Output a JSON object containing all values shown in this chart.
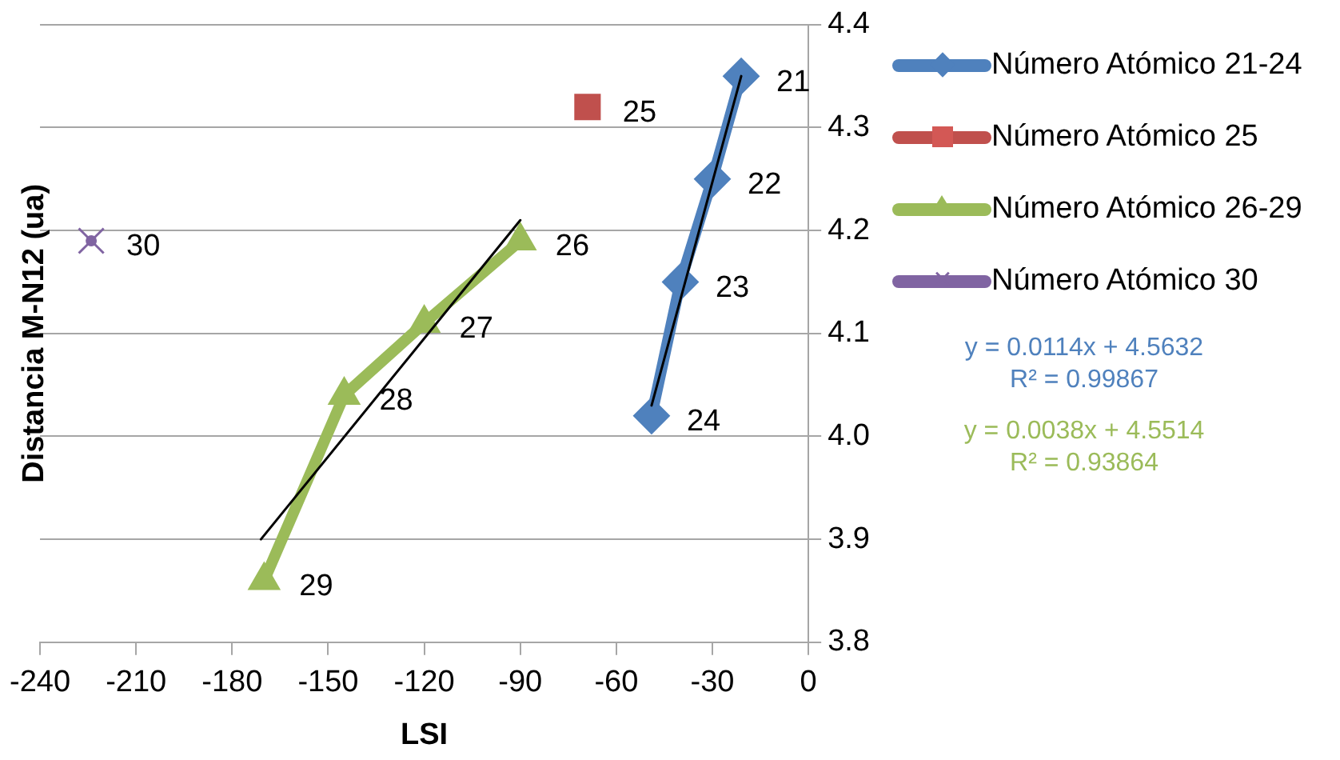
{
  "chart_data": {
    "type": "line",
    "xlabel": "LSI",
    "ylabel": "Distancia M-N12 (ua)",
    "xlim": [
      -240,
      0
    ],
    "xticks": [
      -240,
      -210,
      -180,
      -150,
      -120,
      -90,
      -60,
      -30,
      0
    ],
    "ylim": [
      3.8,
      4.4
    ],
    "yticks": [
      3.8,
      3.9,
      {
        "value": 4,
        "label": "4.0"
      },
      4.1,
      4.2,
      4.3,
      4.4
    ],
    "grid": "y",
    "legend": "right",
    "series": [
      {
        "name": "Número Atómico 21-24",
        "color": "#4f81bd",
        "marker": "diamond",
        "x": [
          -21,
          -30,
          -40,
          -49
        ],
        "values": [
          4.35,
          4.25,
          4.15,
          4.02
        ]
      },
      {
        "name": "Número Atómico 25",
        "color": "#c0504d",
        "marker": "square",
        "x": [
          -69
        ],
        "values": [
          4.32
        ]
      },
      {
        "name": "Número Atómico 26-29",
        "color": "#9bbb59",
        "marker": "triangle",
        "x": [
          -90,
          -120,
          -145,
          -170
        ],
        "values": [
          4.19,
          4.11,
          4.04,
          3.86
        ]
      },
      {
        "name": "Número Atómico 30",
        "color": "#8064a2",
        "marker": "cross",
        "x": [
          -224
        ],
        "values": [
          4.19
        ]
      },
      {
        "type": "line",
        "color": "#000000",
        "marker": "none",
        "x": [
          -49,
          -21
        ],
        "values": [
          4.03,
          4.35
        ]
      },
      {
        "type": "line",
        "color": "#000000",
        "marker": "none",
        "x": [
          -171,
          -90
        ],
        "values": [
          3.9,
          4.21
        ]
      }
    ],
    "annotations": [
      {
        "text": "21",
        "x": -21,
        "y": 4.35
      },
      {
        "text": "22",
        "x": -30,
        "y": 4.25
      },
      {
        "text": "23",
        "x": -40,
        "y": 4.15
      },
      {
        "text": "24",
        "x": -49,
        "y": 4.02
      },
      {
        "text": "25",
        "x": -69,
        "y": 4.32
      },
      {
        "text": "26",
        "x": -90,
        "y": 4.19
      },
      {
        "text": "27",
        "x": -120,
        "y": 4.11
      },
      {
        "text": "28",
        "x": -145,
        "y": 4.04
      },
      {
        "text": "29",
        "x": -170,
        "y": 3.86
      },
      {
        "text": "30",
        "x": -224,
        "y": 4.19
      },
      "y = 0.0114x + 4.5632\nR² = 0.99867",
      "y = 0.0038x + 4.5514\nR² = 0.93864"
    ]
  }
}
